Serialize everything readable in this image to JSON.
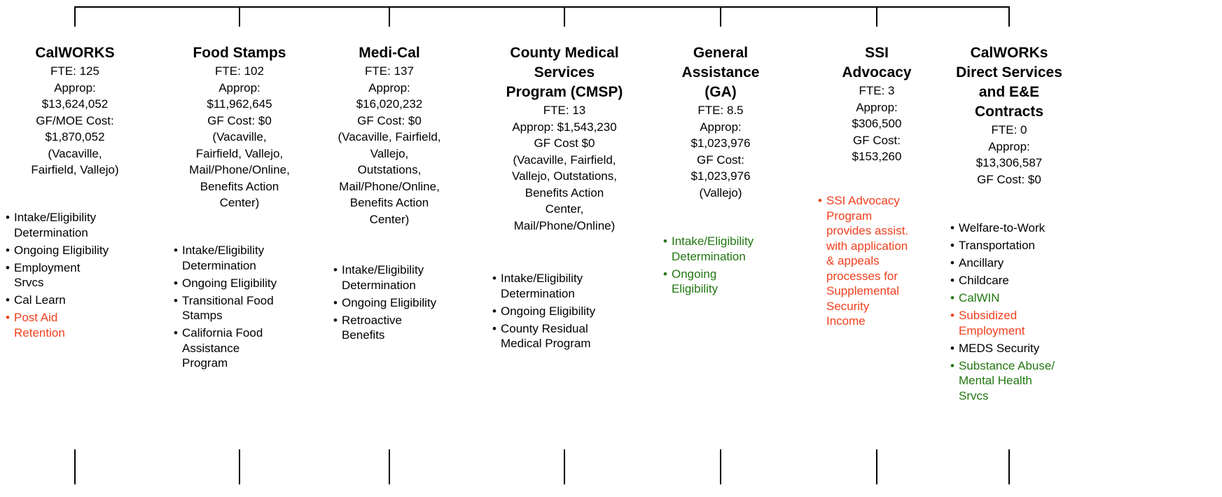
{
  "columns": [
    {
      "title": [
        "CalWORKS"
      ],
      "info": [
        "FTE: 125",
        "Approp:",
        "$13,624,052",
        "GF/MOE Cost:",
        "$1,870,052",
        "(Vacaville,",
        "Fairfield, Vallejo)"
      ],
      "bullets": [
        {
          "lines": [
            "Intake/Eligibility",
            "Determination"
          ],
          "color": "#000000"
        },
        {
          "lines": [
            "Ongoing Eligibility"
          ],
          "color": "#000000"
        },
        {
          "lines": [
            "Employment",
            "Srvcs"
          ],
          "color": "#000000"
        },
        {
          "lines": [
            "Cal Learn"
          ],
          "color": "#000000"
        },
        {
          "lines": [
            "Post Aid",
            "Retention"
          ],
          "color": "#f0401e"
        }
      ]
    },
    {
      "title": [
        "Food Stamps"
      ],
      "info": [
        "FTE: 102",
        "Approp:",
        "$11,962,645",
        "GF Cost: $0",
        "(Vacaville,",
        "Fairfield, Vallejo,",
        "Mail/Phone/Online,",
        "Benefits Action",
        "Center)"
      ],
      "bullets": [
        {
          "lines": [
            "Intake/Eligibility",
            "Determination"
          ],
          "color": "#000000"
        },
        {
          "lines": [
            "Ongoing Eligibility"
          ],
          "color": "#000000"
        },
        {
          "lines": [
            "Transitional Food",
            "Stamps"
          ],
          "color": "#000000"
        },
        {
          "lines": [
            "California Food",
            "Assistance",
            "Program"
          ],
          "color": "#000000"
        }
      ]
    },
    {
      "title": [
        "Medi-Cal"
      ],
      "info": [
        "FTE: 137",
        "Approp:",
        "$16,020,232",
        "GF Cost: $0",
        "(Vacaville, Fairfield,",
        "Vallejo,",
        "Outstations,",
        "Mail/Phone/Online,",
        "Benefits Action",
        "Center)"
      ],
      "bullets": [
        {
          "lines": [
            "Intake/Eligibility",
            "Determination"
          ],
          "color": "#000000"
        },
        {
          "lines": [
            "Ongoing Eligibility"
          ],
          "color": "#000000"
        },
        {
          "lines": [
            "Retroactive",
            "Benefits"
          ],
          "color": "#000000"
        }
      ]
    },
    {
      "title": [
        "County Medical",
        "Services",
        "Program (CMSP)"
      ],
      "info": [
        "FTE: 13",
        "Approp: $1,543,230",
        "GF Cost $0",
        "(Vacaville, Fairfield,",
        "Vallejo, Outstations,",
        "Benefits Action",
        "Center,",
        "Mail/Phone/Online)"
      ],
      "bullets": [
        {
          "lines": [
            "Intake/Eligibility",
            "Determination"
          ],
          "color": "#000000"
        },
        {
          "lines": [
            "Ongoing Eligibility"
          ],
          "color": "#000000"
        },
        {
          "lines": [
            "County Residual",
            "Medical Program"
          ],
          "color": "#000000"
        }
      ]
    },
    {
      "title": [
        "General",
        "Assistance",
        "(GA)"
      ],
      "info": [
        "FTE: 8.5",
        "Approp:",
        "$1,023,976",
        "GF Cost:",
        "$1,023,976",
        "(Vallejo)"
      ],
      "bullets": [
        {
          "lines": [
            "Intake/Eligibility",
            "Determination"
          ],
          "color": "#227711"
        },
        {
          "lines": [
            "Ongoing",
            "Eligibility"
          ],
          "color": "#227711"
        }
      ]
    },
    {
      "title": [
        "SSI",
        "Advocacy"
      ],
      "info": [
        "FTE: 3",
        "Approp:",
        "$306,500",
        "GF Cost:",
        "$153,260"
      ],
      "bullets": [
        {
          "lines": [
            "SSI Advocacy",
            "Program",
            "provides assist.",
            "with application",
            "& appeals",
            "processes for",
            "Supplemental",
            "Security",
            "Income"
          ],
          "color": "#f0401e"
        }
      ]
    },
    {
      "title": [
        "CalWORKs",
        "Direct Services",
        "and E&E",
        "Contracts"
      ],
      "info": [
        "FTE: 0",
        "Approp:",
        "$13,306,587",
        "GF Cost: $0"
      ],
      "bullets": [
        {
          "lines": [
            "Welfare-to-Work"
          ],
          "color": "#000000"
        },
        {
          "lines": [
            "Transportation"
          ],
          "color": "#000000"
        },
        {
          "lines": [
            "Ancillary"
          ],
          "color": "#000000"
        },
        {
          "lines": [
            "Childcare"
          ],
          "color": "#000000"
        },
        {
          "lines": [
            "CalWIN"
          ],
          "color": "#227711"
        },
        {
          "lines": [
            "Subsidized",
            "Employment"
          ],
          "color": "#f0401e"
        },
        {
          "lines": [
            "MEDS Security"
          ],
          "color": "#000000"
        },
        {
          "lines": [
            "Substance Abuse/",
            "Mental Health",
            "Srvcs"
          ],
          "color": "#227711"
        }
      ]
    }
  ]
}
